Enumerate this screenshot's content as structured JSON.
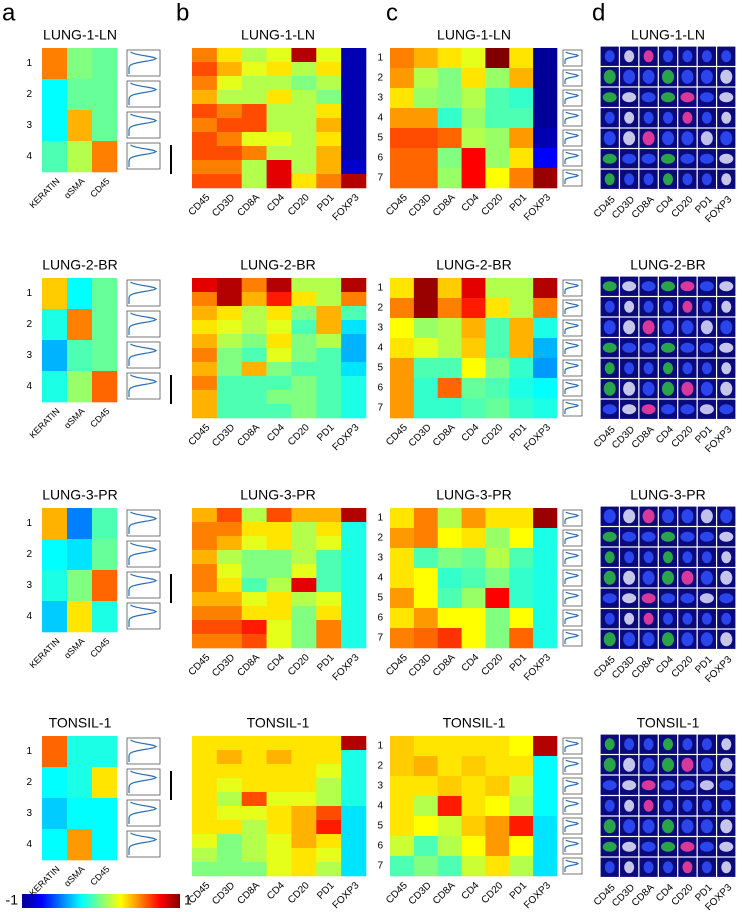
{
  "panel_labels": [
    "a",
    "b",
    "c",
    "d"
  ],
  "colorbar": {
    "clim": [
      -1,
      1
    ],
    "ticks": [
      -1,
      1
    ]
  },
  "heatmap_markers": [
    "CD45",
    "CD3D",
    "CD8A",
    "CD4",
    "CD20",
    "PD1",
    "FOXP3"
  ],
  "image_marker_colors": [
    "#1a9a3a",
    "#999999",
    "#d62020",
    "#1a9a3a",
    "#d62020",
    "#333333",
    "#999999"
  ],
  "samples": [
    {
      "name": "LUNG-1-LN",
      "a": {
        "markers": [
          "KERATIN",
          "αSMA",
          "CD45"
        ],
        "clusters": [
          "1",
          "2",
          "3",
          "4"
        ],
        "values": [
          [
            0.5,
            0,
            -0.05
          ],
          [
            -0.25,
            -0.05,
            -0.05
          ],
          [
            -0.25,
            0.4,
            -0.05
          ],
          [
            -0.1,
            0.1,
            0.5
          ]
        ]
      },
      "b": {
        "values": [
          [
            0.5,
            0.3,
            0.1,
            0.2,
            0.9,
            0.2,
            -0.9
          ],
          [
            0.6,
            0.4,
            0.2,
            0.3,
            0.1,
            0.3,
            -0.9
          ],
          [
            0.5,
            0.2,
            0.1,
            0.1,
            0,
            0.1,
            -0.9
          ],
          [
            0.4,
            0.1,
            0.1,
            0.3,
            0.1,
            0,
            -0.9
          ],
          [
            0.6,
            0.5,
            0.6,
            0.1,
            0.1,
            0.3,
            -0.9
          ],
          [
            0.5,
            0.6,
            0.6,
            0.1,
            0.1,
            0.4,
            -0.9
          ],
          [
            0.6,
            0.5,
            0.2,
            0.2,
            0.1,
            0.3,
            -0.9
          ],
          [
            0.6,
            0.6,
            0.5,
            0.1,
            0.1,
            0.4,
            -0.9
          ],
          [
            0.5,
            0.5,
            0.1,
            0.8,
            0.1,
            0.4,
            -0.85
          ],
          [
            0.6,
            0.6,
            0.1,
            0.8,
            0.3,
            0.5,
            0.9
          ]
        ]
      },
      "c": {
        "clusters": [
          "1",
          "2",
          "3",
          "4",
          "5",
          "6",
          "7"
        ],
        "values": [
          [
            0.5,
            0.4,
            0.3,
            0.2,
            1.0,
            0.3,
            -0.95
          ],
          [
            0.45,
            0.1,
            0,
            0.3,
            0.05,
            0.4,
            -0.95
          ],
          [
            0.3,
            0.05,
            0,
            0.1,
            -0.1,
            -0.15,
            -0.95
          ],
          [
            0.45,
            0.45,
            -0.15,
            0.05,
            -0.1,
            -0.1,
            -0.95
          ],
          [
            0.6,
            0.6,
            0.55,
            0.1,
            0.05,
            0.45,
            -0.9
          ],
          [
            0.55,
            0.55,
            0,
            0.75,
            0.05,
            0.3,
            -0.75
          ],
          [
            0.55,
            0.55,
            0.05,
            0.75,
            0.25,
            0.5,
            0.95
          ]
        ]
      }
    },
    {
      "name": "LUNG-2-BR",
      "a": {
        "markers": [
          "KERATIN",
          "αSMA",
          "CD45"
        ],
        "clusters": [
          "1",
          "2",
          "3",
          "4"
        ],
        "values": [
          [
            0.35,
            -0.25,
            -0.05
          ],
          [
            -0.2,
            0.5,
            -0.05
          ],
          [
            -0.4,
            -0.1,
            -0.05
          ],
          [
            -0.2,
            0.05,
            0.55
          ]
        ]
      },
      "b": {
        "values": [
          [
            0.8,
            0.9,
            0.5,
            0.9,
            0.1,
            0.1,
            0.9
          ],
          [
            0.5,
            0.9,
            0.4,
            0.7,
            0.3,
            0.1,
            0.5
          ],
          [
            0.4,
            0.3,
            0.1,
            0.3,
            0,
            0.4,
            -0.1
          ],
          [
            0.3,
            0.2,
            0.1,
            0.2,
            -0.1,
            0.4,
            -0.3
          ],
          [
            0.4,
            0.1,
            0,
            0.3,
            0,
            0.1,
            -0.4
          ],
          [
            0.5,
            0,
            -0.1,
            0.2,
            0,
            -0.1,
            -0.4
          ],
          [
            0.4,
            0,
            0.4,
            0,
            -0.1,
            -0.1,
            -0.3
          ],
          [
            0.5,
            -0.1,
            -0.1,
            -0.1,
            0,
            -0.1,
            -0.2
          ],
          [
            0.4,
            -0.1,
            -0.1,
            0,
            0,
            -0.1,
            -0.2
          ],
          [
            0.4,
            -0.1,
            -0.1,
            -0.1,
            0,
            -0.1,
            -0.2
          ]
        ]
      },
      "c": {
        "clusters": [
          "1",
          "2",
          "3",
          "4",
          "5",
          "6",
          "7"
        ],
        "values": [
          [
            0.3,
            0.95,
            0.35,
            0.8,
            0.1,
            0.1,
            0.9
          ],
          [
            0.5,
            0.95,
            0.5,
            0.7,
            0.3,
            0.1,
            0.5
          ],
          [
            0.25,
            0.05,
            0.1,
            0.4,
            -0.1,
            0.4,
            -0.2
          ],
          [
            0.3,
            0.2,
            0.1,
            0.35,
            -0.1,
            0.4,
            -0.4
          ],
          [
            0.45,
            -0.1,
            -0.1,
            0.25,
            0,
            -0.15,
            -0.45
          ],
          [
            0.45,
            -0.15,
            0.55,
            -0.05,
            -0.1,
            -0.2,
            -0.25
          ],
          [
            0.45,
            -0.15,
            -0.15,
            -0.1,
            -0.05,
            -0.15,
            -0.2
          ]
        ]
      }
    },
    {
      "name": "LUNG-3-PR",
      "a": {
        "markers": [
          "KERATIN",
          "αSMA",
          "CD45"
        ],
        "clusters": [
          "1",
          "2",
          "3",
          "4"
        ],
        "values": [
          [
            0.4,
            -0.5,
            -0.1
          ],
          [
            -0.25,
            -0.3,
            -0.05
          ],
          [
            -0.2,
            0,
            0.55
          ],
          [
            -0.35,
            0.3,
            -0.2
          ]
        ]
      },
      "b": {
        "values": [
          [
            0.4,
            0.6,
            0.1,
            0.6,
            0.4,
            0.4,
            0.9
          ],
          [
            0.5,
            0.5,
            0.3,
            0.3,
            0.1,
            0.3,
            -0.2
          ],
          [
            0.5,
            0.4,
            0.2,
            0.3,
            0.1,
            0.2,
            -0.2
          ],
          [
            0.4,
            0.1,
            0,
            0,
            0.1,
            -0.1,
            -0.2
          ],
          [
            0.5,
            0.2,
            0,
            0,
            0.2,
            -0.1,
            -0.2
          ],
          [
            0.5,
            0.3,
            -0.1,
            0.1,
            0.8,
            -0.1,
            -0.2
          ],
          [
            0.4,
            0.4,
            0.2,
            0.3,
            0.1,
            0.2,
            -0.2
          ],
          [
            0.5,
            0.5,
            0.3,
            0.3,
            0,
            0.3,
            -0.2
          ],
          [
            0.6,
            0.6,
            0.7,
            0.2,
            0,
            0.5,
            -0.2
          ],
          [
            0.5,
            0.5,
            0.6,
            0.2,
            0,
            0.5,
            -0.2
          ]
        ]
      },
      "c": {
        "clusters": [
          "1",
          "2",
          "3",
          "4",
          "5",
          "6",
          "7"
        ],
        "values": [
          [
            0.3,
            0.5,
            0.1,
            0.45,
            0.3,
            0.3,
            0.95
          ],
          [
            0.45,
            0.5,
            0.25,
            0.3,
            0.05,
            0.25,
            -0.2
          ],
          [
            0.3,
            -0.1,
            0,
            -0.05,
            0.1,
            -0.1,
            -0.2
          ],
          [
            0.3,
            0.25,
            -0.15,
            -0.1,
            0,
            -0.15,
            -0.2
          ],
          [
            0.45,
            0.25,
            -0.1,
            0.05,
            0.75,
            -0.15,
            -0.2
          ],
          [
            0.3,
            0.45,
            0.25,
            0.25,
            0,
            0.25,
            -0.2
          ],
          [
            0.5,
            0.55,
            0.65,
            0.25,
            0,
            0.55,
            -0.2
          ]
        ]
      }
    },
    {
      "name": "TONSIL-1",
      "a": {
        "markers": [
          "KERATIN",
          "αSMA",
          "CD45"
        ],
        "clusters": [
          "1",
          "2",
          "3",
          "4"
        ],
        "values": [
          [
            0.55,
            -0.2,
            -0.2
          ],
          [
            -0.25,
            -0.2,
            0.3
          ],
          [
            -0.35,
            -0.25,
            -0.25
          ],
          [
            -0.25,
            0.45,
            -0.25
          ]
        ]
      },
      "b": {
        "values": [
          [
            0.3,
            0.3,
            0.3,
            0.3,
            0.3,
            0.3,
            0.9
          ],
          [
            0.3,
            0.4,
            0.3,
            0.4,
            0.3,
            0.3,
            -0.2
          ],
          [
            0.3,
            0.3,
            0.3,
            0.3,
            0.3,
            0.2,
            -0.2
          ],
          [
            0.3,
            0.2,
            0.3,
            0.3,
            0.3,
            0.1,
            -0.2
          ],
          [
            0.3,
            0.1,
            0.6,
            0.2,
            0.2,
            0.1,
            -0.2
          ],
          [
            0.3,
            0.2,
            0.2,
            0.3,
            0.4,
            0.6,
            -0.3
          ],
          [
            0.3,
            0.3,
            0.1,
            0.3,
            0.4,
            0.7,
            -0.3
          ],
          [
            0.2,
            0,
            0.1,
            0.2,
            0.4,
            0.3,
            -0.3
          ],
          [
            0.1,
            0,
            0.1,
            0.2,
            0.3,
            0.2,
            -0.3
          ],
          [
            0,
            0,
            0,
            0.2,
            0.3,
            0.1,
            -0.3
          ]
        ]
      },
      "c": {
        "clusters": [
          "1",
          "2",
          "3",
          "4",
          "5",
          "6",
          "7"
        ],
        "values": [
          [
            0.35,
            0.3,
            0.3,
            0.3,
            0.3,
            0.25,
            0.9
          ],
          [
            0.35,
            0.4,
            0.3,
            0.35,
            0.3,
            0.3,
            -0.25
          ],
          [
            0.3,
            0.3,
            0.35,
            0.3,
            0.35,
            0.15,
            -0.25
          ],
          [
            0.3,
            0.1,
            0.7,
            0.3,
            0.25,
            0.1,
            -0.25
          ],
          [
            0.3,
            0.25,
            0.15,
            0.35,
            0.45,
            0.7,
            -0.3
          ],
          [
            0.15,
            -0.1,
            0.1,
            0.25,
            0.45,
            0.25,
            -0.3
          ],
          [
            -0.1,
            0,
            -0.1,
            0.15,
            0.3,
            0.1,
            -0.3
          ]
        ]
      }
    }
  ]
}
